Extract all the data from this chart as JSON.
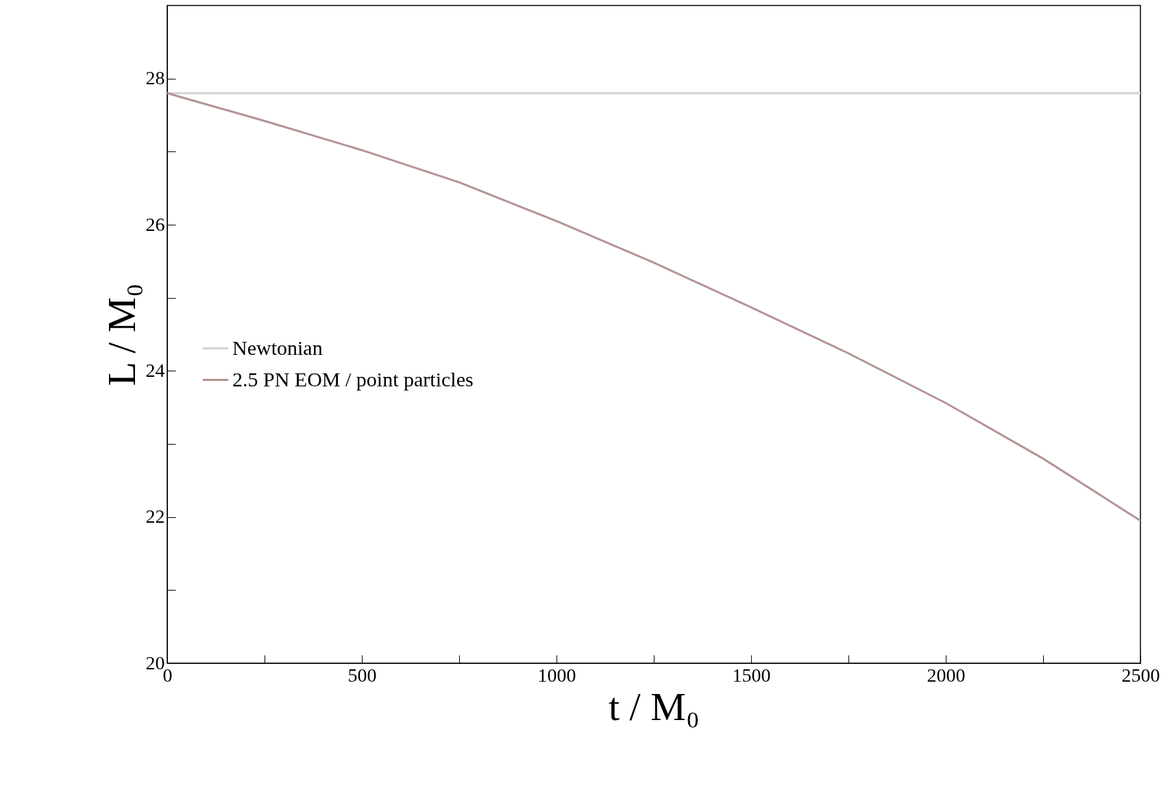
{
  "chart_data": {
    "type": "line",
    "xlabel": "t / M₀",
    "ylabel": "L / M₀",
    "xlim": [
      0,
      2500
    ],
    "ylim": [
      20,
      29
    ],
    "xticks": [
      0,
      {
        "value": 250,
        "label": null
      },
      500,
      {
        "value": 750,
        "label": null
      },
      1000,
      {
        "value": 1250,
        "label": null
      },
      1500,
      {
        "value": 1750,
        "label": null
      },
      2000,
      {
        "value": 2250,
        "label": null
      },
      2500
    ],
    "yticks": [
      20,
      {
        "value": 21,
        "label": null
      },
      22,
      {
        "value": 23,
        "label": null
      },
      24,
      {
        "value": 25,
        "label": null
      },
      26,
      {
        "value": 27,
        "label": null
      },
      28
    ],
    "grid": false,
    "legend": "left",
    "marker": "none",
    "line_style": "solid",
    "series": [
      {
        "name": "Newtonian",
        "color": "#d4d4d4",
        "x": [
          0,
          2500
        ],
        "values": [
          27.8,
          27.8
        ]
      },
      {
        "name": "2.5 PN EOM / point particles",
        "color": "#b39494",
        "x": [
          0,
          250,
          500,
          750,
          1000,
          1250,
          1500,
          1750,
          2000,
          2250,
          2500
        ],
        "values": [
          27.8,
          27.42,
          27.02,
          26.58,
          26.05,
          25.48,
          24.87,
          24.24,
          23.56,
          22.8,
          21.95
        ]
      }
    ]
  }
}
